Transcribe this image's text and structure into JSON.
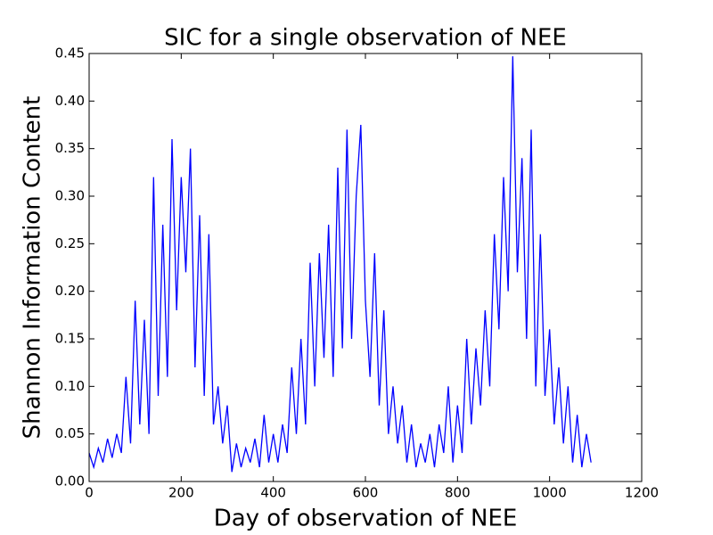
{
  "chart_data": {
    "type": "line",
    "title": "SIC for a single observation of NEE",
    "x_label": "Day of observation of NEE",
    "y_label": "Shannon Information Content",
    "x": [
      0,
      10,
      20,
      30,
      40,
      50,
      60,
      70,
      80,
      90,
      100,
      110,
      120,
      130,
      140,
      150,
      160,
      170,
      180,
      190,
      200,
      210,
      220,
      230,
      240,
      250,
      260,
      270,
      280,
      290,
      300,
      310,
      320,
      330,
      340,
      350,
      360,
      370,
      380,
      390,
      400,
      410,
      420,
      430,
      440,
      450,
      460,
      470,
      480,
      490,
      500,
      510,
      520,
      530,
      540,
      550,
      560,
      570,
      580,
      590,
      600,
      610,
      620,
      630,
      640,
      650,
      660,
      670,
      680,
      690,
      700,
      710,
      720,
      730,
      740,
      750,
      760,
      770,
      780,
      790,
      800,
      810,
      820,
      830,
      840,
      850,
      860,
      870,
      880,
      890,
      900,
      910,
      920,
      930,
      940,
      950,
      960,
      970,
      980,
      990,
      1000,
      1010,
      1020,
      1030,
      1040,
      1050,
      1060,
      1070,
      1080,
      1090
    ],
    "series": [
      {
        "name": "SIC",
        "color": "#0000ff",
        "values": [
          0.03,
          0.015,
          0.035,
          0.02,
          0.045,
          0.025,
          0.05,
          0.03,
          0.11,
          0.04,
          0.19,
          0.06,
          0.17,
          0.05,
          0.32,
          0.09,
          0.27,
          0.11,
          0.36,
          0.18,
          0.32,
          0.22,
          0.35,
          0.12,
          0.28,
          0.09,
          0.26,
          0.06,
          0.1,
          0.04,
          0.08,
          0.01,
          0.04,
          0.015,
          0.035,
          0.02,
          0.045,
          0.015,
          0.07,
          0.02,
          0.05,
          0.02,
          0.06,
          0.03,
          0.12,
          0.05,
          0.15,
          0.06,
          0.23,
          0.1,
          0.24,
          0.13,
          0.27,
          0.11,
          0.33,
          0.14,
          0.37,
          0.15,
          0.3,
          0.375,
          0.19,
          0.11,
          0.24,
          0.08,
          0.18,
          0.05,
          0.1,
          0.04,
          0.08,
          0.02,
          0.06,
          0.015,
          0.04,
          0.02,
          0.05,
          0.015,
          0.06,
          0.03,
          0.1,
          0.02,
          0.08,
          0.03,
          0.15,
          0.06,
          0.14,
          0.08,
          0.18,
          0.1,
          0.26,
          0.16,
          0.32,
          0.2,
          0.447,
          0.22,
          0.34,
          0.15,
          0.37,
          0.1,
          0.26,
          0.09,
          0.16,
          0.06,
          0.12,
          0.04,
          0.1,
          0.02,
          0.07,
          0.015,
          0.05,
          0.02
        ]
      }
    ],
    "xlim": [
      0,
      1200
    ],
    "xticks": [
      0,
      200,
      400,
      600,
      800,
      1000,
      1200
    ],
    "ylim": [
      0,
      0.45
    ],
    "yticks": [
      {
        "value": 0,
        "label": "0.00"
      },
      {
        "value": 0.05,
        "label": "0.05"
      },
      {
        "value": 0.1,
        "label": "0.10"
      },
      {
        "value": 0.15,
        "label": "0.15"
      },
      {
        "value": 0.2,
        "label": "0.20"
      },
      {
        "value": 0.25,
        "label": "0.25"
      },
      {
        "value": 0.3,
        "label": "0.30"
      },
      {
        "value": 0.35,
        "label": "0.35"
      },
      {
        "value": 0.4,
        "label": "0.40"
      },
      {
        "value": 0.45,
        "label": "0.45"
      }
    ]
  }
}
